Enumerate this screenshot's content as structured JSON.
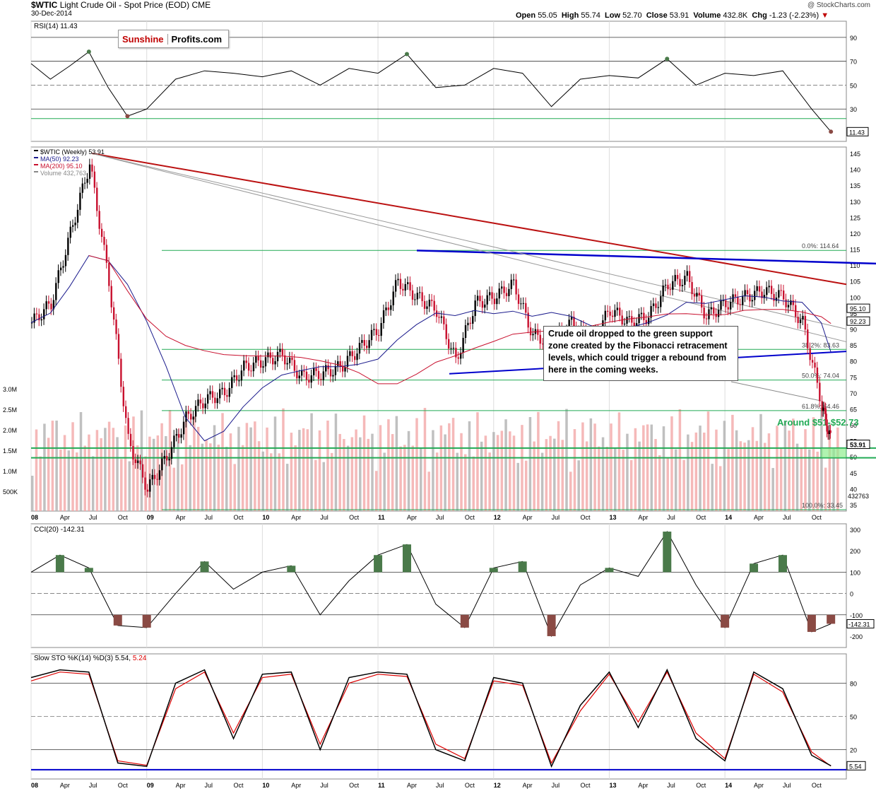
{
  "header": {
    "symbol": "$WTIC",
    "name": "Light Crude Oil - Spot Price (EOD)",
    "exchange": "CME",
    "date": "30-Dec-2014",
    "open_label": "Open",
    "open": "55.05",
    "high_label": "High",
    "high": "55.74",
    "low_label": "Low",
    "low": "52.70",
    "close_label": "Close",
    "close": "53.91",
    "volume_label": "Volume",
    "volume": "432.8K",
    "chg_label": "Chg",
    "chg": "-1.23 (-2.23%)",
    "chg_color": "#c00000",
    "watermark": "@ StockCharts.com"
  },
  "logo": {
    "part1": "Sunshine",
    "part2": "Profits.com",
    "part1_color": "#c00000"
  },
  "annotation": {
    "text": "Crude oil dropped to the green support zone created by the Fibonacci retracement levels, which could trigger a rebound from here in the coming weeks.",
    "zone_label": "Around $51-$52.73",
    "zone_color": "#2ecc71"
  },
  "colors": {
    "up_candle": "#000000",
    "down_candle": "#c8102e",
    "ma50": "#1a1a8c",
    "ma200": "#c8102e",
    "vol_up": "#b0b0b0",
    "vol_down": "#f2a8a8",
    "fib": "#22aa55",
    "trend_blue": "#0000cc",
    "trend_red": "#bb1111",
    "trend_gray": "#999999",
    "osc_green": "#4a7a4a",
    "osc_red": "#8a4a44",
    "slow_k": "#000000",
    "slow_d": "#dd0000"
  },
  "chart_data": [
    {
      "type": "line",
      "panel": "RSI",
      "title": "RSI(14) 11.43",
      "last_value": "11.43",
      "y_ticks": [
        "90",
        "70",
        "50",
        "30"
      ],
      "levels": [
        70,
        30
      ],
      "x": [
        "2008-01",
        "2008-03",
        "2008-05",
        "2008-07",
        "2008-09",
        "2008-11",
        "2009-01",
        "2009-04",
        "2009-07",
        "2009-10",
        "2010-01",
        "2010-04",
        "2010-07",
        "2010-10",
        "2011-01",
        "2011-04",
        "2011-07",
        "2011-10",
        "2012-01",
        "2012-04",
        "2012-07",
        "2012-10",
        "2013-01",
        "2013-04",
        "2013-07",
        "2013-10",
        "2014-01",
        "2014-04",
        "2014-07",
        "2014-10",
        "2014-12"
      ],
      "values": [
        68,
        55,
        66,
        78,
        48,
        24,
        30,
        55,
        62,
        60,
        57,
        62,
        50,
        64,
        60,
        76,
        48,
        50,
        64,
        60,
        32,
        55,
        58,
        56,
        72,
        50,
        60,
        58,
        62,
        30,
        11
      ]
    },
    {
      "type": "candlestick",
      "panel": "price",
      "title": "$WTIC (Weekly) 53.91",
      "legend": [
        {
          "label": "$WTIC (Weekly) 53.91",
          "color": "#000000"
        },
        {
          "label": "MA(50) 92.23",
          "color": "#1a1a8c"
        },
        {
          "label": "MA(200) 95.10",
          "color": "#c8102e"
        },
        {
          "label": "Volume 432,763",
          "color": "#888888"
        }
      ],
      "y_ticks": [
        "145",
        "140",
        "135",
        "130",
        "125",
        "120",
        "115",
        "110",
        "105",
        "100",
        "95",
        "90",
        "85",
        "80",
        "75",
        "70",
        "65",
        "60",
        "55",
        "50",
        "45",
        "40",
        "35"
      ],
      "x_ticks": [
        "08",
        "Apr",
        "Jul",
        "Oct",
        "09",
        "Apr",
        "Jul",
        "Oct",
        "10",
        "Apr",
        "Jul",
        "Oct",
        "11",
        "Apr",
        "Jul",
        "Oct",
        "12",
        "Apr",
        "Jul",
        "Oct",
        "13",
        "Apr",
        "Jul",
        "Oct",
        "14",
        "Apr",
        "Jul",
        "Oct"
      ],
      "ylim": [
        33,
        147
      ],
      "x": [
        "2008-01",
        "2008-03",
        "2008-05",
        "2008-07",
        "2008-09",
        "2008-11",
        "2009-01",
        "2009-03",
        "2009-05",
        "2009-07",
        "2009-09",
        "2009-11",
        "2010-01",
        "2010-03",
        "2010-05",
        "2010-07",
        "2010-09",
        "2010-11",
        "2011-01",
        "2011-03",
        "2011-05",
        "2011-07",
        "2011-09",
        "2011-11",
        "2012-01",
        "2012-03",
        "2012-05",
        "2012-07",
        "2012-09",
        "2012-11",
        "2013-01",
        "2013-03",
        "2013-05",
        "2013-07",
        "2013-09",
        "2013-11",
        "2014-01",
        "2014-03",
        "2014-05",
        "2014-07",
        "2014-09",
        "2014-11",
        "2014-12"
      ],
      "values": [
        92,
        98,
        120,
        142,
        105,
        55,
        40,
        50,
        62,
        68,
        70,
        78,
        80,
        82,
        75,
        76,
        78,
        84,
        90,
        105,
        100,
        96,
        80,
        98,
        100,
        104,
        88,
        86,
        92,
        86,
        96,
        92,
        94,
        104,
        106,
        94,
        98,
        100,
        102,
        100,
        92,
        66,
        53.91
      ],
      "ma50_last": "92.23",
      "ma200_last": "95.10",
      "last_price": "53.91",
      "fibonacci": [
        {
          "label": "0.0%: 114.64",
          "value": 114.64
        },
        {
          "label": "38.2%: 83.63",
          "value": 83.63
        },
        {
          "label": "50.0%: 74.04",
          "value": 74.04
        },
        {
          "label": "61.8%: 64.46",
          "value": 64.46
        },
        {
          "label": "100.0%: 33.45",
          "value": 33.45
        }
      ],
      "support_zone": [
        51,
        52.73
      ],
      "volume_ticks": [
        "3.0M",
        "2.5M",
        "2.0M",
        "1.5M",
        "1.0M",
        "500K"
      ],
      "last_volume": "432763"
    },
    {
      "type": "line",
      "panel": "CCI",
      "title": "CCI(20) -142.31",
      "last_value": "-142.31",
      "y_ticks": [
        "300",
        "200",
        "100",
        "0",
        "-100",
        "-200"
      ],
      "levels": [
        100,
        0,
        -100
      ],
      "x": [
        "2008-01",
        "2008-04",
        "2008-07",
        "2008-10",
        "2009-01",
        "2009-04",
        "2009-07",
        "2009-10",
        "2010-01",
        "2010-04",
        "2010-07",
        "2010-10",
        "2011-01",
        "2011-04",
        "2011-07",
        "2011-10",
        "2012-01",
        "2012-04",
        "2012-07",
        "2012-10",
        "2013-01",
        "2013-04",
        "2013-07",
        "2013-10",
        "2014-01",
        "2014-04",
        "2014-07",
        "2014-10",
        "2014-12"
      ],
      "values": [
        100,
        180,
        120,
        -150,
        -160,
        0,
        150,
        20,
        100,
        130,
        -100,
        60,
        180,
        230,
        -50,
        -160,
        120,
        150,
        -200,
        40,
        120,
        80,
        290,
        40,
        -160,
        140,
        180,
        -180,
        -142
      ]
    },
    {
      "type": "line",
      "panel": "Slow STO",
      "title": "Slow STO %K(14) %D(3) 5.54, 5.24",
      "title_k": "Slow STO %K(14) %D(3) 5.54,",
      "title_d": "5.24",
      "last_value": "5.54",
      "y_ticks": [
        "80",
        "50",
        "20"
      ],
      "levels": [
        80,
        50,
        20
      ],
      "x": [
        "2008-01",
        "2008-04",
        "2008-07",
        "2008-10",
        "2009-01",
        "2009-04",
        "2009-07",
        "2009-10",
        "2010-01",
        "2010-04",
        "2010-07",
        "2010-10",
        "2011-01",
        "2011-04",
        "2011-07",
        "2011-10",
        "2012-01",
        "2012-04",
        "2012-07",
        "2012-10",
        "2013-01",
        "2013-04",
        "2013-07",
        "2013-10",
        "2014-01",
        "2014-04",
        "2014-07",
        "2014-10",
        "2014-12"
      ],
      "series": [
        {
          "name": "%K",
          "values": [
            85,
            92,
            90,
            8,
            5,
            80,
            92,
            30,
            88,
            90,
            20,
            85,
            90,
            88,
            20,
            10,
            85,
            80,
            5,
            60,
            90,
            40,
            92,
            30,
            10,
            90,
            75,
            15,
            5.54
          ]
        },
        {
          "name": "%D",
          "values": [
            82,
            90,
            88,
            10,
            6,
            75,
            90,
            35,
            85,
            88,
            25,
            80,
            88,
            86,
            25,
            12,
            82,
            78,
            8,
            55,
            88,
            45,
            90,
            35,
            12,
            88,
            72,
            18,
            5.24
          ]
        }
      ]
    }
  ]
}
